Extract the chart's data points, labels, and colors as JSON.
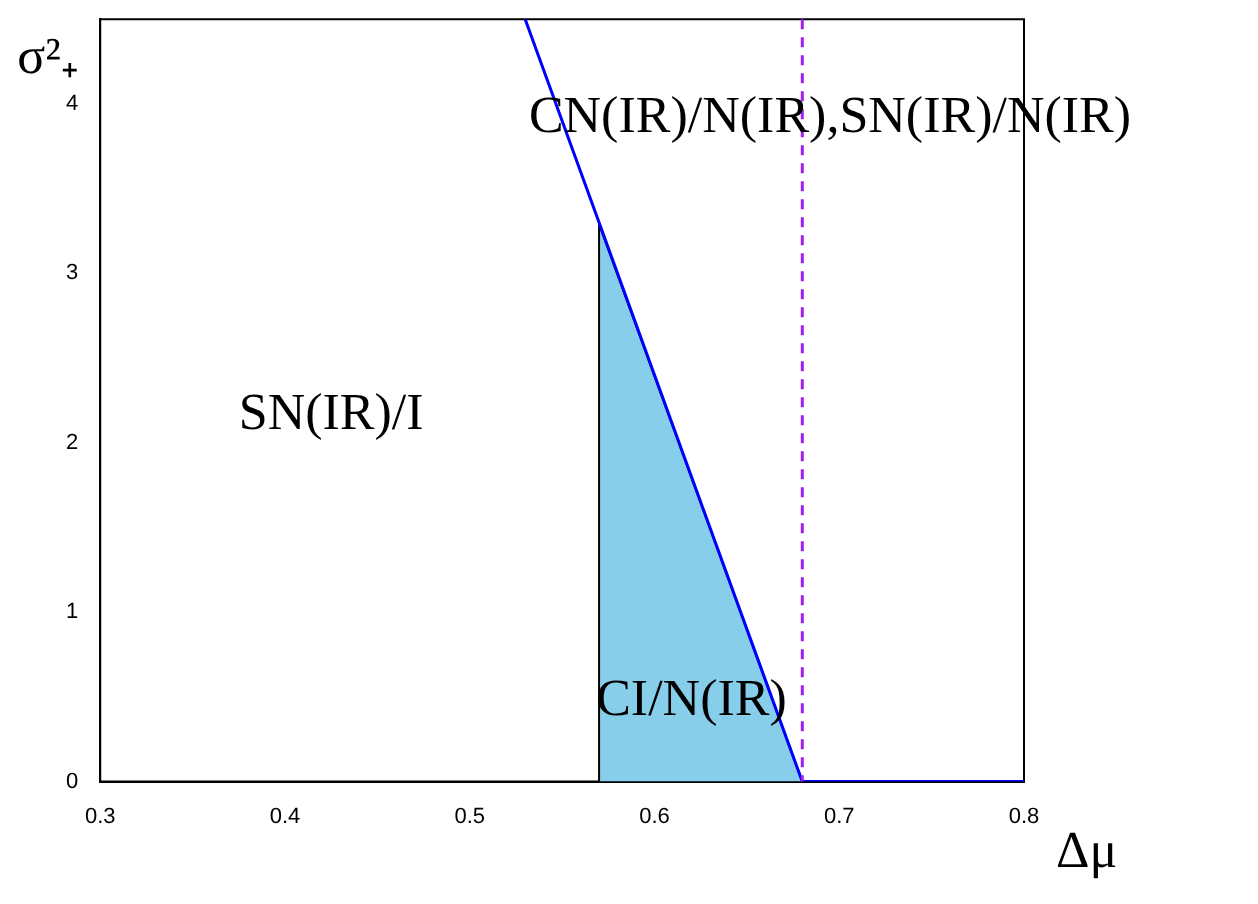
{
  "chart_data": {
    "type": "line",
    "xlabel": "Δμ",
    "ylabel": "σ²₊",
    "xlim": [
      0.3,
      0.8
    ],
    "xticks": [
      0.3,
      0.4,
      0.5,
      0.6,
      0.7,
      0.8
    ],
    "ylim": [
      0,
      4.5
    ],
    "yticks": [
      0,
      1,
      2,
      3,
      4
    ],
    "grid": false,
    "legend": false,
    "series": [
      {
        "type": "area",
        "color": "#87ceeb",
        "x": [
          0.57,
          0.57,
          0.68
        ],
        "values": [
          0,
          3.29,
          0
        ]
      },
      {
        "color": "#0000ff",
        "x": [
          0.53,
          0.68,
          0.8
        ],
        "values": [
          4.5,
          0,
          0
        ]
      }
    ],
    "ref_lines": [
      {
        "axis": "x",
        "value": 0.68,
        "color": "#a020f0",
        "line_style": "dashed"
      }
    ],
    "annotations": [
      "CN(IR)/N(IR),SN(IR)/N(IR)",
      "SN(IR)/I",
      "CI/N(IR)"
    ]
  }
}
